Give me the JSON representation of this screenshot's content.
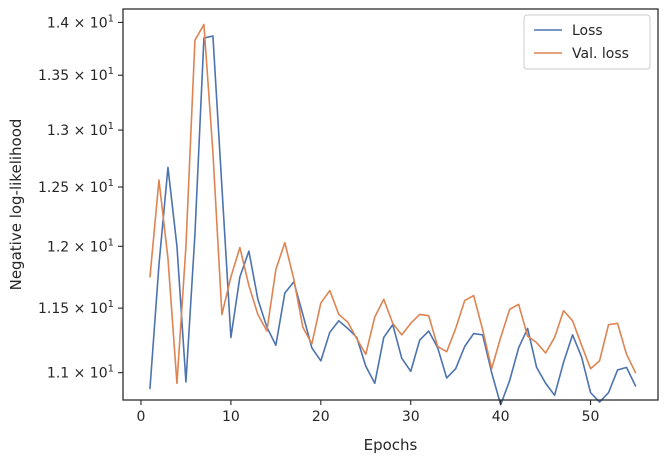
{
  "chart_data": {
    "type": "line",
    "xlabel": "Epochs",
    "ylabel": "Negative log-likelihood",
    "yscale": "log",
    "xlim": [
      -2,
      57.5
    ],
    "ylim": [
      10.795,
      14.13
    ],
    "xticks": [
      0,
      10,
      20,
      30,
      40,
      50
    ],
    "yticks": [
      11.0,
      11.5,
      12.0,
      12.5,
      13.0,
      13.5,
      14.0
    ],
    "ytick_labels": {
      "mantissas": [
        "1.1",
        "1.15",
        "1.2",
        "1.25",
        "1.3",
        "1.35",
        "1.4"
      ],
      "times": "×",
      "base": "10",
      "exponent": "1"
    },
    "legend_position": "top-right",
    "grid": false,
    "x": [
      1,
      2,
      3,
      4,
      5,
      6,
      7,
      8,
      9,
      10,
      11,
      12,
      13,
      14,
      15,
      16,
      17,
      18,
      19,
      20,
      21,
      22,
      23,
      24,
      25,
      26,
      27,
      28,
      29,
      30,
      31,
      32,
      33,
      34,
      35,
      36,
      37,
      38,
      39,
      40,
      41,
      42,
      43,
      44,
      45,
      46,
      47,
      48,
      49,
      50,
      51,
      52,
      53,
      54,
      55
    ],
    "series": [
      {
        "name": "Loss",
        "color": "#4c72b0",
        "values": [
          10.88,
          11.85,
          12.67,
          12.0,
          10.93,
          12.1,
          13.85,
          13.87,
          12.5,
          11.27,
          11.75,
          11.96,
          11.57,
          11.35,
          11.21,
          11.62,
          11.71,
          11.45,
          11.19,
          11.09,
          11.31,
          11.4,
          11.34,
          11.27,
          11.05,
          10.92,
          11.27,
          11.37,
          11.11,
          11.01,
          11.25,
          11.32,
          11.19,
          10.96,
          11.03,
          11.2,
          11.3,
          11.29,
          11.0,
          10.76,
          10.94,
          11.19,
          11.34,
          11.04,
          10.92,
          10.83,
          11.08,
          11.29,
          11.12,
          10.85,
          10.78,
          10.85,
          11.02,
          11.04,
          10.9
        ]
      },
      {
        "name": "Val. loss",
        "color": "#dd8452",
        "values": [
          11.75,
          12.56,
          11.9,
          10.92,
          12.0,
          13.83,
          13.98,
          12.8,
          11.45,
          11.75,
          11.99,
          11.68,
          11.45,
          11.32,
          11.81,
          12.03,
          11.73,
          11.35,
          11.22,
          11.54,
          11.64,
          11.45,
          11.39,
          11.26,
          11.14,
          11.43,
          11.57,
          11.38,
          11.29,
          11.38,
          11.45,
          11.44,
          11.2,
          11.16,
          11.34,
          11.56,
          11.6,
          11.33,
          11.03,
          11.27,
          11.49,
          11.53,
          11.28,
          11.23,
          11.15,
          11.27,
          11.48,
          11.4,
          11.21,
          11.03,
          11.09,
          11.37,
          11.38,
          11.14,
          11.0
        ]
      }
    ]
  }
}
